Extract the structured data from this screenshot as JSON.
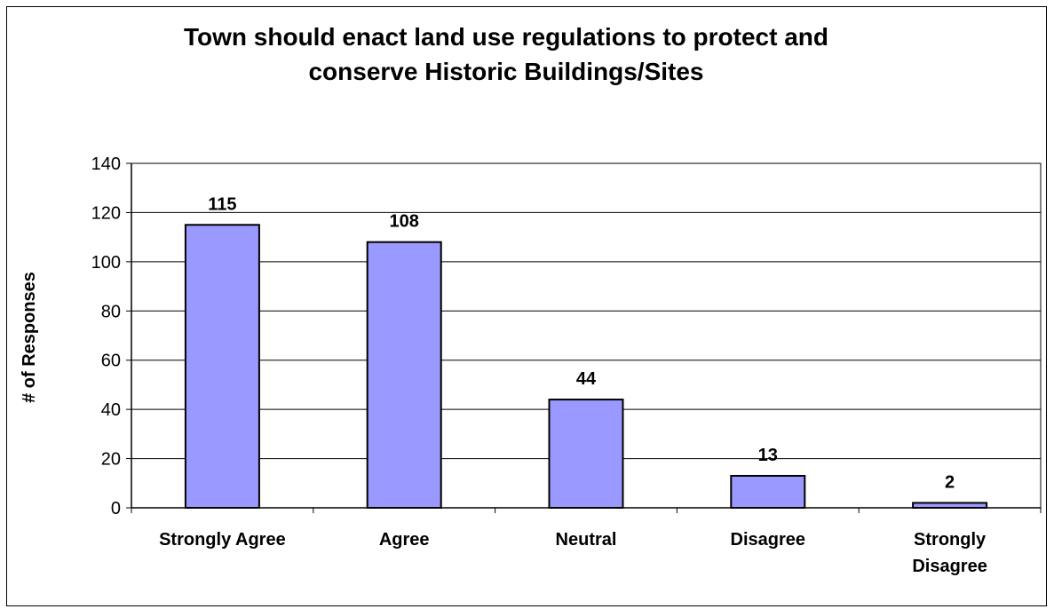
{
  "chart_data": {
    "type": "bar",
    "title": "Town should enact land use regulations to protect and conserve Historic Buildings/Sites",
    "title_lines": [
      "Town should enact land use regulations to protect and",
      "conserve Historic Buildings/Sites"
    ],
    "xlabel": "",
    "ylabel": "# of Responses",
    "categories": [
      [
        "Strongly Agree"
      ],
      [
        "Agree"
      ],
      [
        "Neutral"
      ],
      [
        "Disagree"
      ],
      [
        "Strongly",
        "Disagree"
      ]
    ],
    "values": [
      115,
      108,
      44,
      13,
      2
    ],
    "ylim": [
      0,
      140
    ],
    "yticks": [
      0,
      20,
      40,
      60,
      80,
      100,
      120,
      140
    ],
    "grid": true,
    "legend": "none",
    "bar_color": "#9999ff",
    "data_labels": true
  }
}
